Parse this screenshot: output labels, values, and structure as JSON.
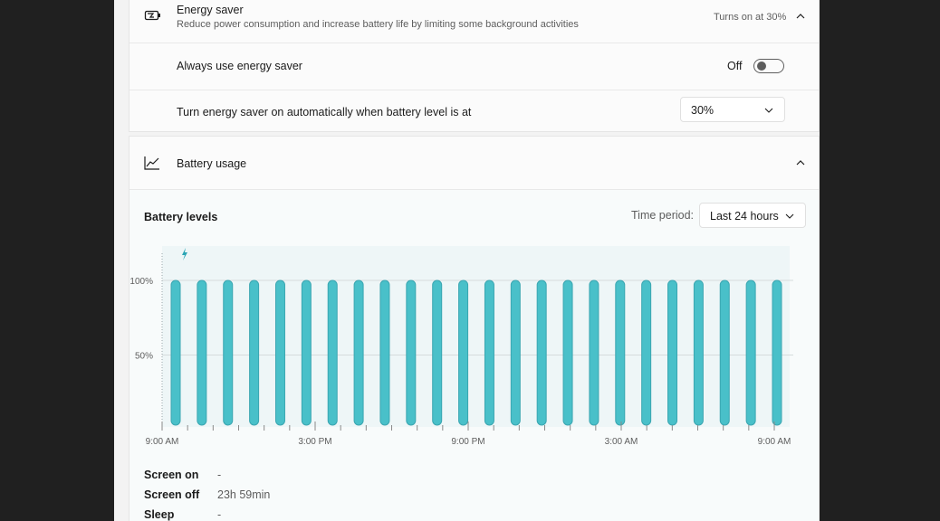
{
  "energy_saver": {
    "title": "Energy saver",
    "description": "Reduce power consumption and increase battery life by limiting some background activities",
    "status": "Turns on at 30%",
    "always_use_label": "Always use energy saver",
    "always_use_state": "Off",
    "auto_label": "Turn energy saver on automatically when battery level is at",
    "auto_value": "30%"
  },
  "battery_usage": {
    "title": "Battery usage",
    "levels_title": "Battery levels",
    "time_period_label": "Time period:",
    "time_period_value": "Last 24 hours",
    "stats": [
      {
        "label": "Screen on",
        "value": "-"
      },
      {
        "label": "Screen off",
        "value": "23h 59min"
      },
      {
        "label": "Sleep",
        "value": "-"
      }
    ]
  },
  "colors": {
    "bar": "#49c0c9",
    "bar_dark": "#3aa6b1",
    "charging_icon": "#2aa5b4",
    "plot_bg": "#eef6f7"
  },
  "chart_data": {
    "type": "bar",
    "ylim": [
      0,
      100
    ],
    "y_ticks": [
      "100%",
      "50%"
    ],
    "x_ticks": [
      "9:00 AM",
      "3:00 PM",
      "9:00 PM",
      "3:00 AM",
      "9:00 AM"
    ],
    "values": [
      100,
      100,
      100,
      100,
      100,
      100,
      100,
      100,
      100,
      100,
      100,
      100,
      100,
      100,
      100,
      100,
      100,
      100,
      100,
      100,
      100,
      100,
      100,
      100
    ],
    "grid": true
  }
}
